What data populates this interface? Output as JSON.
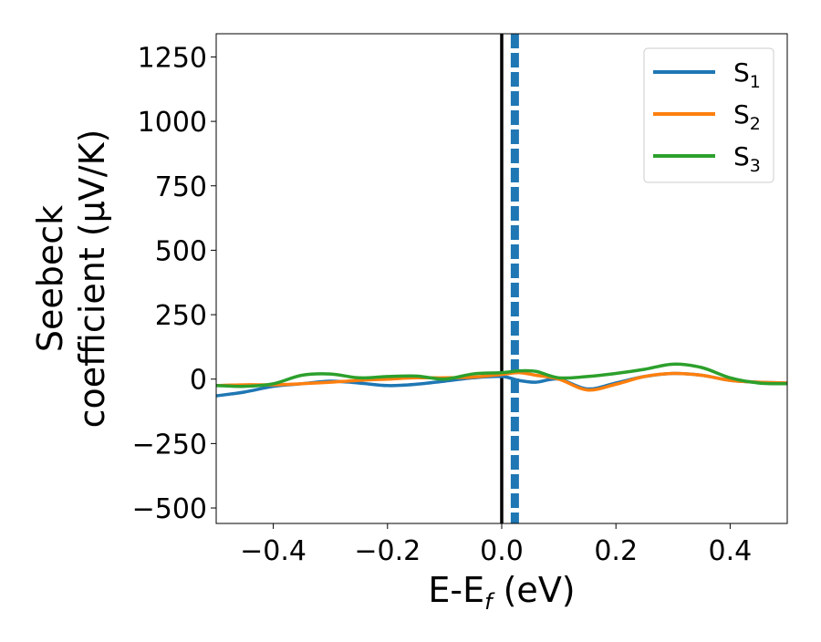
{
  "chart_data": {
    "type": "line",
    "xlabel": "E-E",
    "xlabel_sub": "f",
    "xlabel_unit": " (eV)",
    "ylabel_line1": "Seebeck",
    "ylabel_line2": "coefficient  (μV/K)",
    "xlim": [
      -0.5,
      0.5
    ],
    "ylim": [
      -560,
      1340
    ],
    "xticks": [
      -0.4,
      -0.2,
      0.0,
      0.2,
      0.4
    ],
    "xtick_labels": [
      "−0.4",
      "−0.2",
      "0.0",
      "0.2",
      "0.4"
    ],
    "yticks": [
      -500,
      -250,
      0,
      250,
      500,
      750,
      1000,
      1250
    ],
    "ytick_labels": [
      "−500",
      "−250",
      "0",
      "250",
      "500",
      "750",
      "1000",
      "1250"
    ],
    "grid": false,
    "legend_position": "top-right",
    "vline_solid": {
      "x": 0.0,
      "color": "#000000"
    },
    "vline_dashed": {
      "x": 0.023,
      "color": "#1f77b4"
    },
    "series": [
      {
        "name": "S",
        "sub": "1",
        "color": "#1f77b4",
        "x": [
          -0.5,
          -0.45,
          -0.4,
          -0.35,
          -0.3,
          -0.25,
          -0.2,
          -0.15,
          -0.1,
          -0.05,
          0.0,
          0.03,
          0.06,
          0.1,
          0.15,
          0.2,
          0.25,
          0.3,
          0.35,
          0.4,
          0.45,
          0.5
        ],
        "y": [
          -65,
          -50,
          -28,
          -18,
          -8,
          -15,
          -25,
          -20,
          -8,
          5,
          10,
          -5,
          -12,
          0,
          -38,
          -15,
          10,
          22,
          15,
          -5,
          -12,
          -15
        ]
      },
      {
        "name": "S",
        "sub": "2",
        "color": "#ff7f0e",
        "x": [
          -0.5,
          -0.45,
          -0.4,
          -0.35,
          -0.3,
          -0.25,
          -0.2,
          -0.15,
          -0.1,
          -0.05,
          0.0,
          0.03,
          0.06,
          0.1,
          0.15,
          0.2,
          0.25,
          0.3,
          0.35,
          0.4,
          0.45,
          0.5
        ],
        "y": [
          -25,
          -22,
          -22,
          -18,
          -12,
          -5,
          0,
          5,
          5,
          8,
          18,
          25,
          15,
          0,
          -42,
          -20,
          10,
          22,
          15,
          -5,
          -12,
          -15
        ]
      },
      {
        "name": "S",
        "sub": "3",
        "color": "#2ca02c",
        "x": [
          -0.5,
          -0.45,
          -0.4,
          -0.35,
          -0.3,
          -0.25,
          -0.2,
          -0.15,
          -0.1,
          -0.05,
          0.0,
          0.03,
          0.06,
          0.1,
          0.15,
          0.2,
          0.25,
          0.3,
          0.35,
          0.4,
          0.45,
          0.5
        ],
        "y": [
          -25,
          -28,
          -18,
          15,
          20,
          5,
          10,
          12,
          0,
          20,
          25,
          32,
          30,
          5,
          10,
          22,
          38,
          58,
          45,
          5,
          -15,
          -18
        ]
      }
    ]
  }
}
